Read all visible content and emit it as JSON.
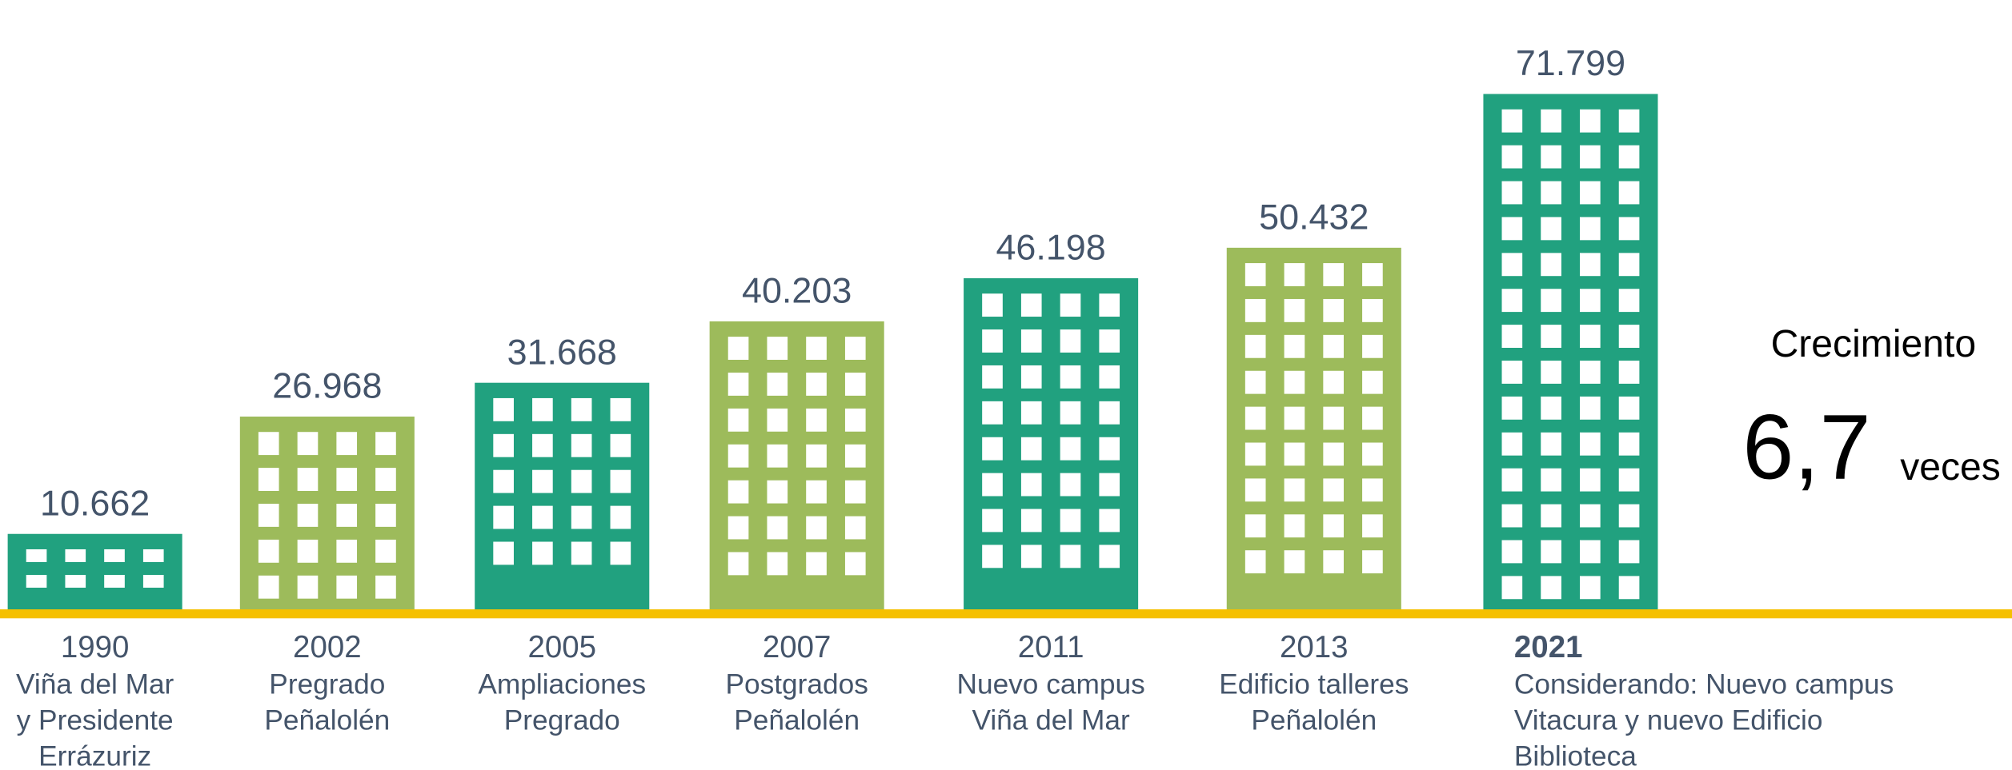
{
  "chart_data": {
    "type": "bar",
    "categories": [
      "1990",
      "2002",
      "2005",
      "2007",
      "2011",
      "2013",
      "2021"
    ],
    "descriptions": [
      [
        "Viña del Mar",
        "y Presidente",
        "Errázuriz"
      ],
      [
        "Pregrado",
        "Peñalolén"
      ],
      [
        "Ampliaciones",
        "Pregrado"
      ],
      [
        "Postgrados",
        "Peñalolén"
      ],
      [
        "Nuevo campus",
        "Viña del Mar"
      ],
      [
        "Edificio talleres",
        "Peñalolén"
      ],
      [
        "Considerando: Nuevo campus",
        "Vitacura y nuevo Edificio",
        "Biblioteca"
      ]
    ],
    "values": [
      10662,
      26968,
      31668,
      40203,
      46198,
      50432,
      71799
    ],
    "value_labels": [
      "10.662",
      "26.968",
      "31.668",
      "40.203",
      "46.198",
      "50.432",
      "71.799"
    ],
    "colors": [
      "#21a17f",
      "#9dbb5b",
      "#21a17f",
      "#9dbb5b",
      "#21a17f",
      "#9dbb5b",
      "#21a17f"
    ],
    "baseline_color": "#f5c000",
    "growth": {
      "title": "Crecimiento",
      "value_label": "6,7",
      "unit": "veces"
    }
  }
}
